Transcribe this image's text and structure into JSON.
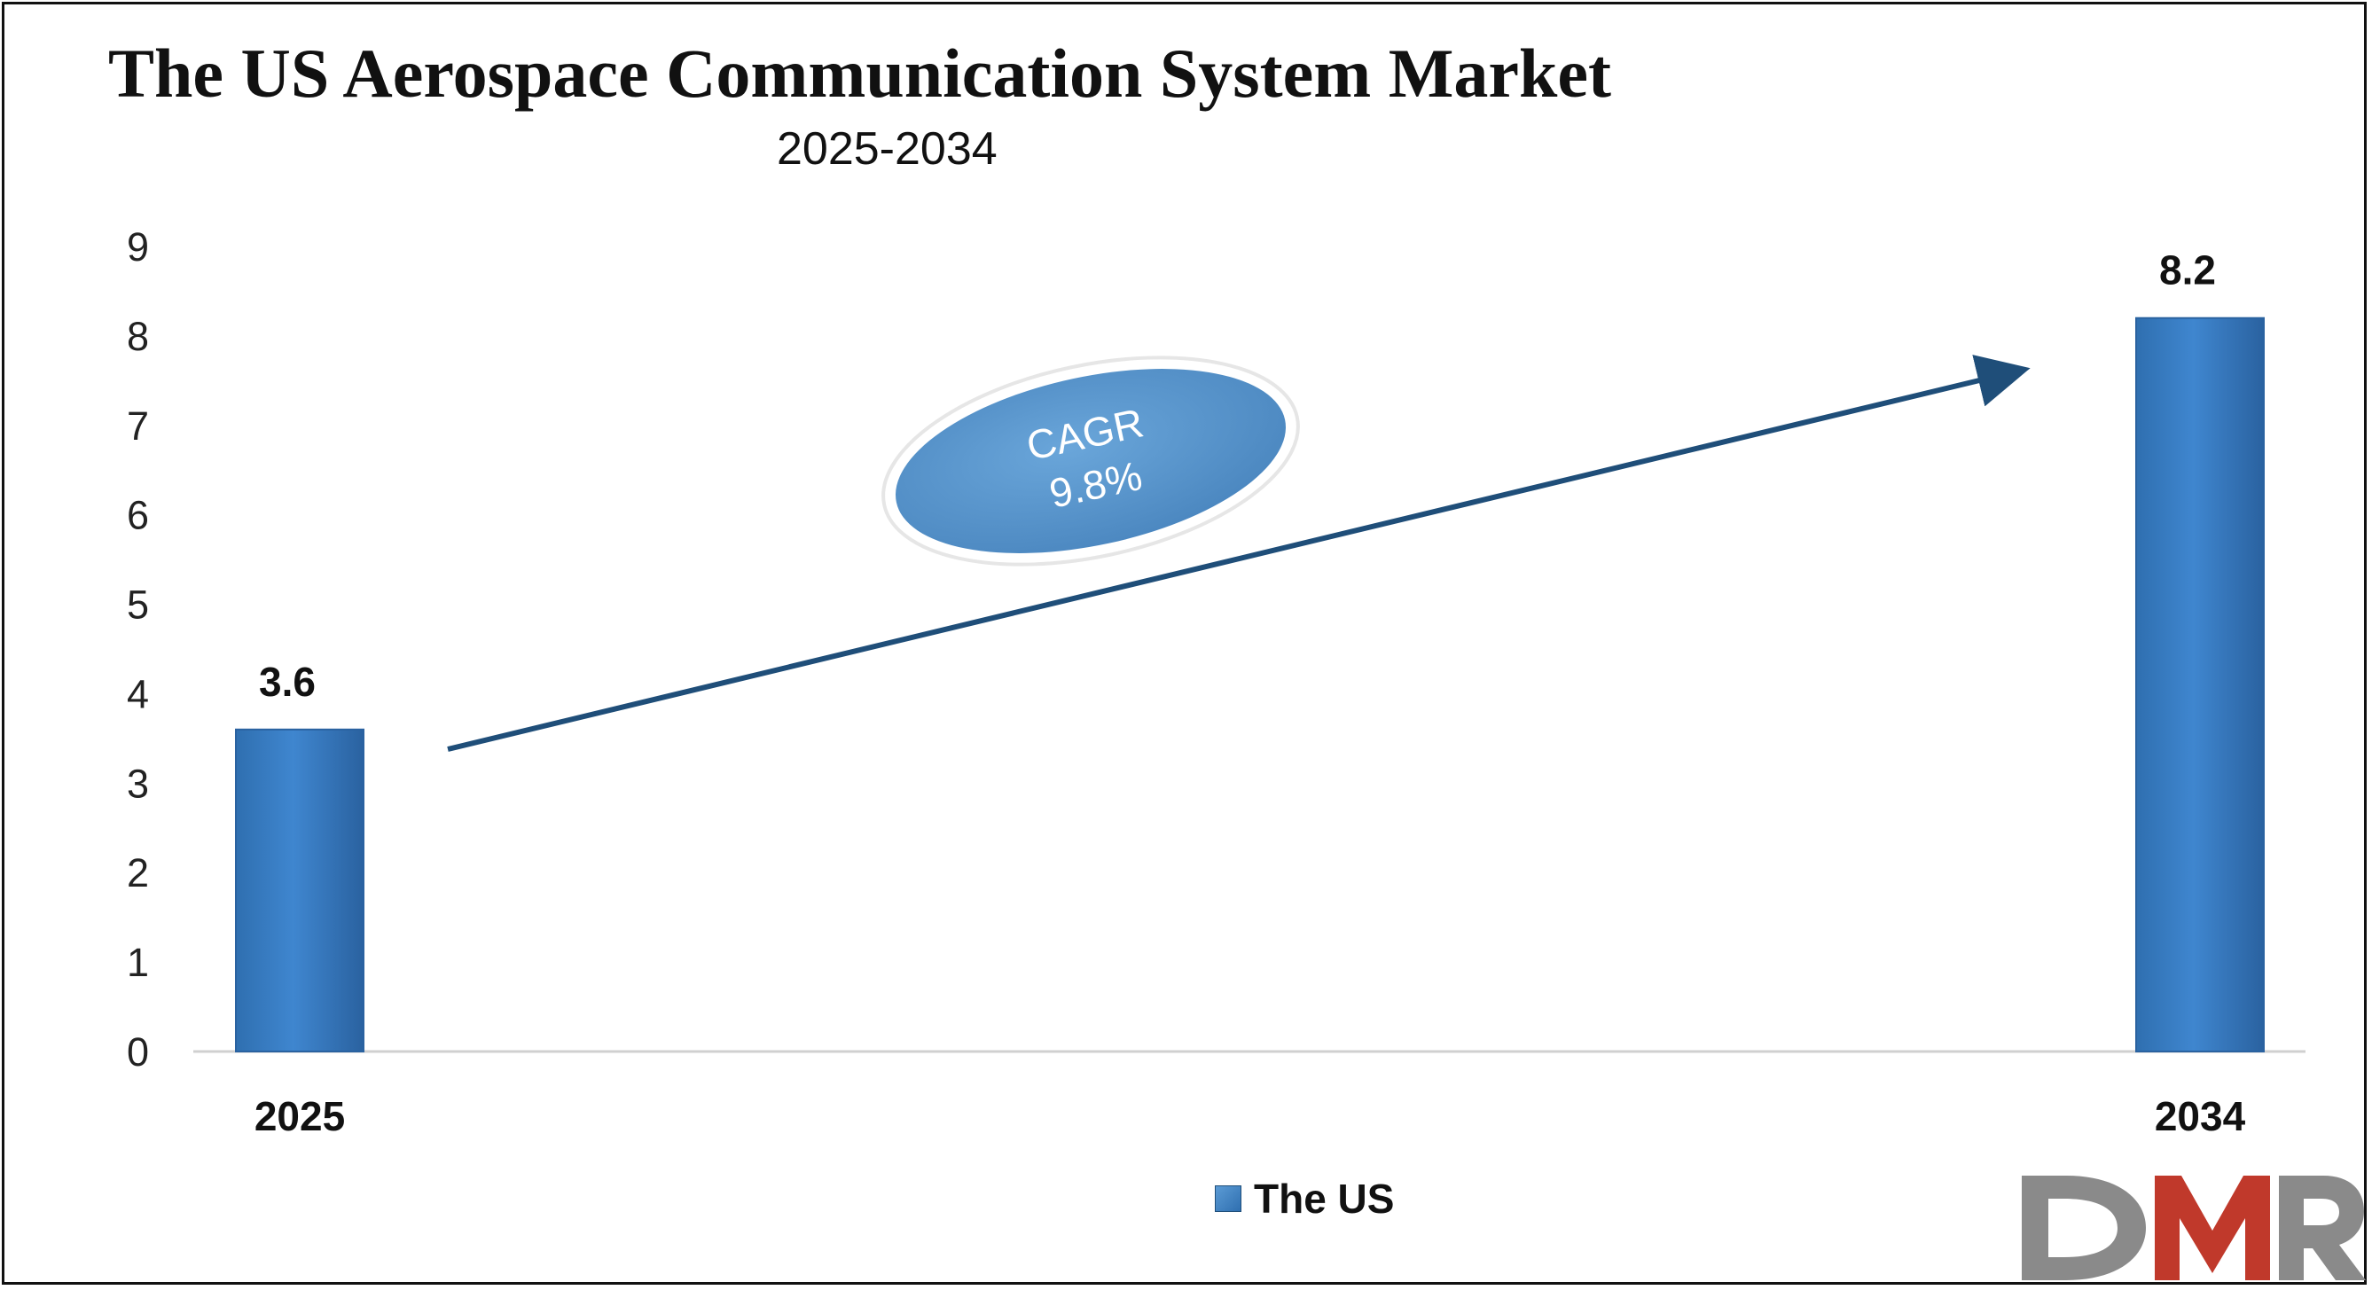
{
  "title": "The US Aerospace Communication System Market",
  "subtitle": "2025-2034",
  "legend": {
    "label": "The US"
  },
  "cagr": {
    "line1": "CAGR",
    "line2": "9.8%"
  },
  "logo": {
    "text": "DMR",
    "colors": [
      "#8a8a8a",
      "#c0392b",
      "#8a8a8a"
    ]
  },
  "colors": {
    "bar": "#3a7dc4",
    "bar_dark": "#2a62a0",
    "arrow": "#1f4e79",
    "ellipse": "#5b9bd5"
  },
  "chart_data": {
    "type": "bar",
    "title": "The US Aerospace Communication System Market",
    "subtitle": "2025-2034",
    "categories": [
      "2025",
      "2034"
    ],
    "series": [
      {
        "name": "The US",
        "values": [
          3.6,
          8.2
        ]
      }
    ],
    "data_labels": [
      "3.6",
      "8.2"
    ],
    "ylim": [
      0,
      9
    ],
    "yticks": [
      0,
      1,
      2,
      3,
      4,
      5,
      6,
      7,
      8,
      9
    ],
    "xlabel": "",
    "ylabel": "",
    "grid": false,
    "legend_position": "bottom-center",
    "annotation": "CAGR 9.8%"
  }
}
